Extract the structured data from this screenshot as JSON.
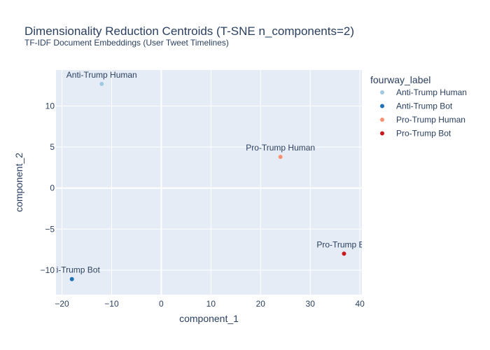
{
  "chart_data": {
    "type": "scatter",
    "title": "Dimensionality Reduction Centroids (T-SNE n_components=2)",
    "subtitle": "TF-IDF Document Embeddings (User Tweet Timelines)",
    "xlabel": "component_1",
    "ylabel": "component_2",
    "xlim": [
      -21.2,
      40.4
    ],
    "ylim": [
      -13.0,
      14.4
    ],
    "xticks": [
      -20,
      -10,
      0,
      10,
      20,
      30,
      40
    ],
    "yticks": [
      -10,
      -5,
      0,
      5,
      10
    ],
    "xtick_labels": [
      "−20",
      "−10",
      "0",
      "10",
      "20",
      "30",
      "40"
    ],
    "ytick_labels": [
      "−10",
      "−5",
      "0",
      "5",
      "10"
    ],
    "grid": true,
    "legend": {
      "title": "fourway_label",
      "placement": "right"
    },
    "series": [
      {
        "name": "Anti-Trump Human",
        "color": "#9ecae1",
        "x": [
          -12.0
        ],
        "y": [
          12.7
        ],
        "label": "Anti-Trump Human"
      },
      {
        "name": "Anti-Trump Bot",
        "color": "#2171b5",
        "x": [
          -18.0
        ],
        "y": [
          -11.1
        ],
        "label": "Anti-Trump Bot"
      },
      {
        "name": "Pro-Trump Human",
        "color": "#fc9272",
        "x": [
          24.0
        ],
        "y": [
          3.8
        ],
        "label": "Pro-Trump Human"
      },
      {
        "name": "Pro-Trump Bot",
        "color": "#cb181d",
        "x": [
          36.8
        ],
        "y": [
          -8.0
        ],
        "label": "Pro-Trump Bot"
      }
    ]
  }
}
